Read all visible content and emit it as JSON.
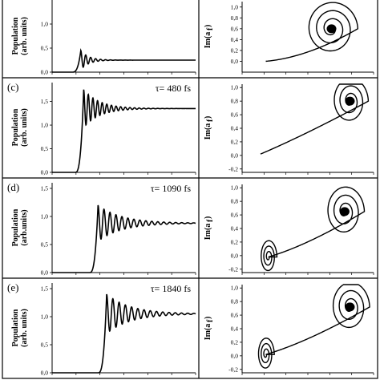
{
  "chart_data": [
    {
      "id": "b-left",
      "type": "line",
      "panel_label": "",
      "annotation": "",
      "ylabel": "Population",
      "ylabel2": "(arb. units)",
      "ylim": [
        0.0,
        1.5
      ],
      "yticks": [
        "0,0",
        "0,5",
        "1,0"
      ],
      "series": [
        {
          "rise_x": 0.2,
          "peak": 0.45,
          "steady": 0.25,
          "osc_freq": 58,
          "osc_decay": 18
        }
      ]
    },
    {
      "id": "b-right",
      "type": "line",
      "ylabel": "Im(a_f)",
      "ylim": [
        -0.2,
        1.1
      ],
      "yticks": [
        "0,0",
        "0,2",
        "0,4",
        "0,6",
        "0,8",
        "1,0"
      ],
      "spiral": {
        "start": [
          0.18,
          0.0
        ],
        "mid": [
          0.5,
          0.22
        ],
        "center": [
          0.68,
          0.6
        ],
        "r0": 0.2,
        "turns": 3.2,
        "start_spiral": false
      }
    },
    {
      "id": "c-left",
      "type": "line",
      "panel_label": "(c)",
      "annotation": "τ= 480 fs",
      "ylabel": "Population",
      "ylabel2": "(arb. units)",
      "ylim": [
        0.0,
        1.9
      ],
      "yticks": [
        "0,0",
        "0,5",
        "1,0",
        "1,5"
      ],
      "series": [
        {
          "rise_x": 0.22,
          "peak": 1.75,
          "steady": 1.35,
          "osc_freq": 62,
          "osc_decay": 9
        }
      ]
    },
    {
      "id": "c-right",
      "type": "line",
      "ylabel": "Im(a_f)",
      "ylim": [
        -0.25,
        1.05
      ],
      "yticks": [
        "-0,2",
        "0,0",
        "0,2",
        "0,4",
        "0,6",
        "0,8",
        "1,0"
      ],
      "spiral": {
        "start": [
          0.14,
          0.02
        ],
        "mid": [
          0.48,
          0.45
        ],
        "center": [
          0.82,
          0.8
        ],
        "r0": 0.14,
        "turns": 3.0,
        "start_spiral": false
      }
    },
    {
      "id": "d-left",
      "type": "line",
      "panel_label": "(d)",
      "annotation": "τ= 1090 fs",
      "ylabel": "Population",
      "ylabel2": "(arb.units)",
      "ylim": [
        0.0,
        1.6
      ],
      "yticks": [
        "0,0",
        "0,5",
        "1,0",
        "1,5"
      ],
      "series": [
        {
          "rise_x": 0.32,
          "peak": 1.2,
          "steady": 0.88,
          "osc_freq": 48,
          "osc_decay": 6
        }
      ]
    },
    {
      "id": "d-right",
      "type": "line",
      "ylabel": "Im(a_f)",
      "ylim": [
        -0.25,
        1.05
      ],
      "yticks": [
        "-0,2",
        "0,0",
        "0,2",
        "0,4",
        "0,6",
        "0,8",
        "1,0"
      ],
      "spiral": {
        "start": [
          0.2,
          -0.02
        ],
        "mid": [
          0.5,
          0.3
        ],
        "center": [
          0.78,
          0.65
        ],
        "r0": 0.15,
        "turns": 3.0,
        "start_spiral": true
      }
    },
    {
      "id": "e-left",
      "type": "line",
      "panel_label": "(e)",
      "annotation": "τ= 1840 fs",
      "ylabel": "Population",
      "ylabel2": "(arb. units)",
      "ylim": [
        0.0,
        1.6
      ],
      "yticks": [
        "0,0",
        "0,5",
        "1,0",
        "1,5"
      ],
      "series": [
        {
          "rise_x": 0.38,
          "peak": 1.4,
          "steady": 1.05,
          "osc_freq": 46,
          "osc_decay": 6
        }
      ]
    },
    {
      "id": "e-right",
      "type": "line",
      "ylabel": "Im(a_f)",
      "ylim": [
        -0.25,
        1.05
      ],
      "yticks": [
        "-0,2",
        "0,0",
        "0,2",
        "0,4",
        "0,6",
        "0,8",
        "1,0"
      ],
      "spiral": {
        "start": [
          0.18,
          0.02
        ],
        "mid": [
          0.5,
          0.35
        ],
        "center": [
          0.82,
          0.72
        ],
        "r0": 0.15,
        "turns": 3.0,
        "start_spiral": true
      }
    }
  ],
  "colors": {
    "line": "#000000",
    "frame": "#000000",
    "background": "#ffffff"
  }
}
